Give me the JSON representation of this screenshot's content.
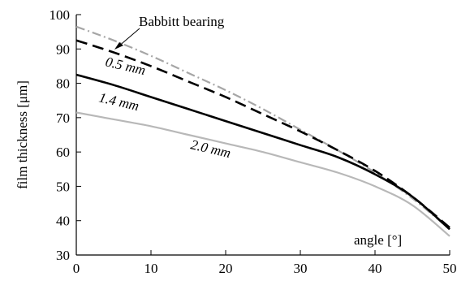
{
  "chart_data": {
    "type": "line",
    "xlabel": "angle [°]",
    "ylabel": "film thickness [μm]",
    "xlim": [
      0,
      50
    ],
    "ylim": [
      30,
      100
    ],
    "x_ticks": [
      0,
      10,
      20,
      30,
      40,
      50
    ],
    "y_ticks": [
      30,
      40,
      50,
      60,
      70,
      80,
      90,
      100
    ],
    "grid": false,
    "series": [
      {
        "name": "Babbitt bearing",
        "style": "dash-dot",
        "color": "#a6a6a6",
        "x": [
          0,
          5,
          10,
          15,
          20,
          25,
          30,
          35,
          40,
          45,
          50
        ],
        "y": [
          96.5,
          92.5,
          88,
          83,
          78,
          72.5,
          66.5,
          60.5,
          54,
          46.5,
          37.5
        ]
      },
      {
        "name": "0.5 mm",
        "style": "dashed",
        "color": "#000000",
        "x": [
          0,
          5,
          10,
          15,
          20,
          25,
          30,
          35,
          40,
          45,
          50
        ],
        "y": [
          92.5,
          89,
          85,
          80.5,
          76,
          71,
          66,
          60.5,
          54.5,
          47,
          38
        ]
      },
      {
        "name": "1.4 mm",
        "style": "solid",
        "color": "#000000",
        "x": [
          0,
          5,
          10,
          15,
          20,
          25,
          30,
          35,
          40,
          45,
          50
        ],
        "y": [
          82.5,
          79.5,
          76,
          72.5,
          69,
          65.5,
          62,
          58.5,
          53.5,
          47,
          37.5
        ]
      },
      {
        "name": "2.0 mm",
        "style": "solid",
        "color": "#b8b8b8",
        "x": [
          0,
          5,
          10,
          15,
          20,
          25,
          30,
          35,
          40,
          45,
          50
        ],
        "y": [
          71.5,
          69.5,
          67.5,
          65,
          62.5,
          60,
          57,
          54,
          50,
          44.5,
          35.5
        ]
      }
    ]
  }
}
